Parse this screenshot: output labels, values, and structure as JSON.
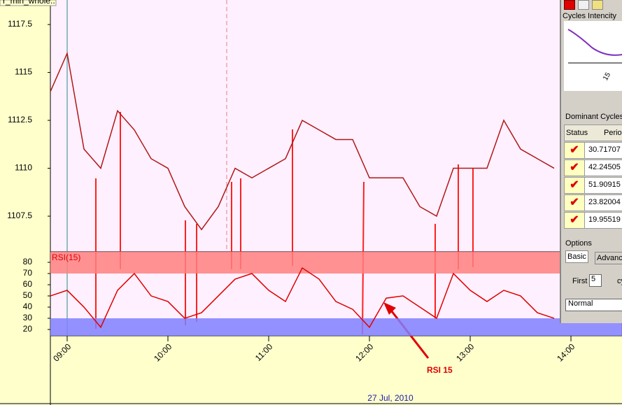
{
  "chart_label": "r_min_whole..",
  "chart_data": [
    {
      "type": "line",
      "name": "price",
      "x": [
        530,
        540,
        550,
        560,
        570,
        580,
        590,
        600,
        610,
        620,
        630,
        640,
        650,
        660,
        670,
        680,
        690,
        700,
        710,
        720,
        730,
        740,
        750,
        760,
        770,
        780,
        790,
        800,
        810,
        820,
        830
      ],
      "series": [
        {
          "color": "#b01818",
          "values": [
            1114,
            1116,
            1111,
            1110,
            1113,
            1112,
            1110.5,
            1110,
            1108,
            1106.8,
            1108,
            1110,
            1109.5,
            1110,
            1110.5,
            1112.5,
            1112,
            1111.5,
            1111.5,
            1109.5,
            1109.5,
            1109.5,
            1108,
            1107.5,
            1110,
            1110,
            1110,
            1112.5,
            1111,
            1110.5,
            1110
          ]
        }
      ],
      "xlim": [
        530,
        870.4
      ],
      "ylim": [
        1105.64,
        1118.78
      ],
      "yticks": [
        1107.5,
        1110,
        1112.5,
        1115,
        1117.5
      ]
    },
    {
      "type": "line",
      "name": "rsi",
      "legend": "RSI(15)",
      "annotation": "RSI 15",
      "xlabel": "27 Jul, 2010",
      "x": [
        530,
        540,
        550,
        560,
        570,
        580,
        590,
        600,
        610,
        620,
        630,
        640,
        650,
        660,
        670,
        680,
        690,
        700,
        710,
        720,
        730,
        740,
        750,
        760,
        770,
        780,
        790,
        800,
        810,
        820,
        830
      ],
      "series": [
        {
          "color": "#e00000",
          "values": [
            50,
            55,
            40,
            22,
            55,
            70,
            50,
            45,
            30,
            35,
            50,
            65,
            70,
            55,
            45,
            75,
            65,
            45,
            38,
            22,
            48,
            50,
            40,
            30,
            70,
            55,
            45,
            55,
            50,
            35,
            30
          ]
        }
      ],
      "xlim": [
        530,
        870.4
      ],
      "xticks": [
        {
          "value": 540,
          "label": "09:00"
        },
        {
          "value": 600,
          "label": "10:00"
        },
        {
          "value": 660,
          "label": "11:00"
        },
        {
          "value": 720,
          "label": "12:00"
        },
        {
          "value": 780,
          "label": "13:00"
        },
        {
          "value": 840,
          "label": "14:00"
        }
      ],
      "ylim": [
        14.4,
        89.4
      ],
      "yticks": [
        20,
        30,
        40,
        50,
        60,
        70,
        80
      ],
      "bands": [
        {
          "from": 70,
          "to": 89.4,
          "color": "#ff8080"
        },
        {
          "from": 14.4,
          "to": 30,
          "color": "#8080ff"
        }
      ]
    }
  ],
  "panel": {
    "intensity_title": "Cycles Intencity",
    "intensity_tick": "15",
    "cycles_title": "Dominant Cycles",
    "table": {
      "header": [
        "Status",
        "Period"
      ],
      "rows": [
        "30.71707",
        "42.24505",
        "51.90915",
        "23.82004",
        "19.95519"
      ]
    },
    "options_title": "Options",
    "tabs": [
      "Basic",
      "Advanc"
    ],
    "first_label": "First",
    "first_value": "5",
    "unit": "cy",
    "mode": "Normal"
  }
}
